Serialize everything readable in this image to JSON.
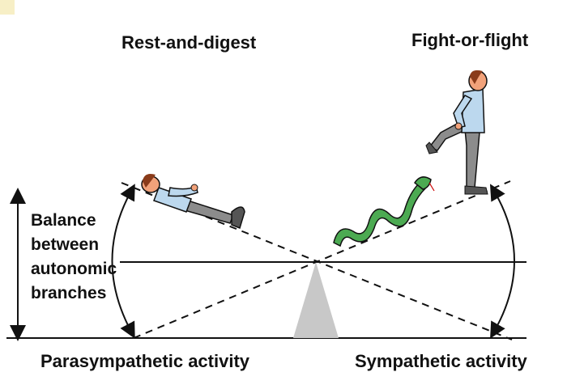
{
  "labels": {
    "rest_and_digest": "Rest-and-digest",
    "fight_or_flight": "Fight-or-flight",
    "parasympathetic_activity": "Parasympathetic activity",
    "sympathetic_activity": "Sympathetic activity",
    "balance_lines": [
      "Balance",
      "between",
      "autonomic",
      "branches"
    ]
  },
  "icons": {
    "resting_person": "reclining-person-icon",
    "running_person": "running-person-icon",
    "snake": "snake-icon",
    "fulcrum": "triangle-fulcrum-icon"
  },
  "colors": {
    "shirt": "#bcd8ee",
    "trousers": "#8c8c8c",
    "skin": "#f2a27a",
    "hair": "#8a3b1a",
    "snake": "#4caa52",
    "fulcrum": "#c8c8c8",
    "lines": "#111111",
    "corner_tab": "#f7efc6"
  }
}
